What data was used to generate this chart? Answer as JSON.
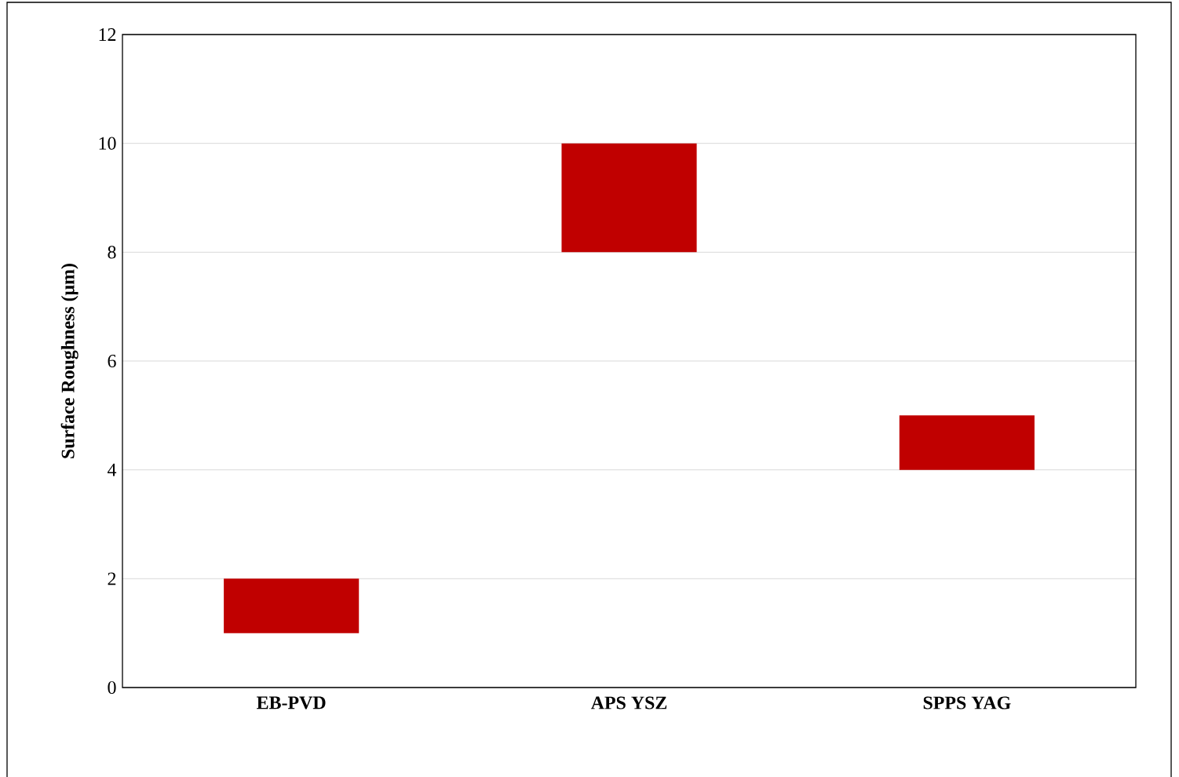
{
  "chart_data": {
    "type": "bar",
    "ylabel": "Surface Roughness (μm)",
    "categories": [
      "EB-PVD",
      "APS YSZ",
      "SPPS YAG"
    ],
    "values": [
      1,
      2,
      1
    ],
    "base": [
      1,
      8,
      4
    ],
    "color": "#c00000",
    "ylim": [
      0,
      12
    ],
    "yticks": [
      0,
      2,
      4,
      6,
      8,
      10,
      12
    ],
    "grid": "y"
  }
}
